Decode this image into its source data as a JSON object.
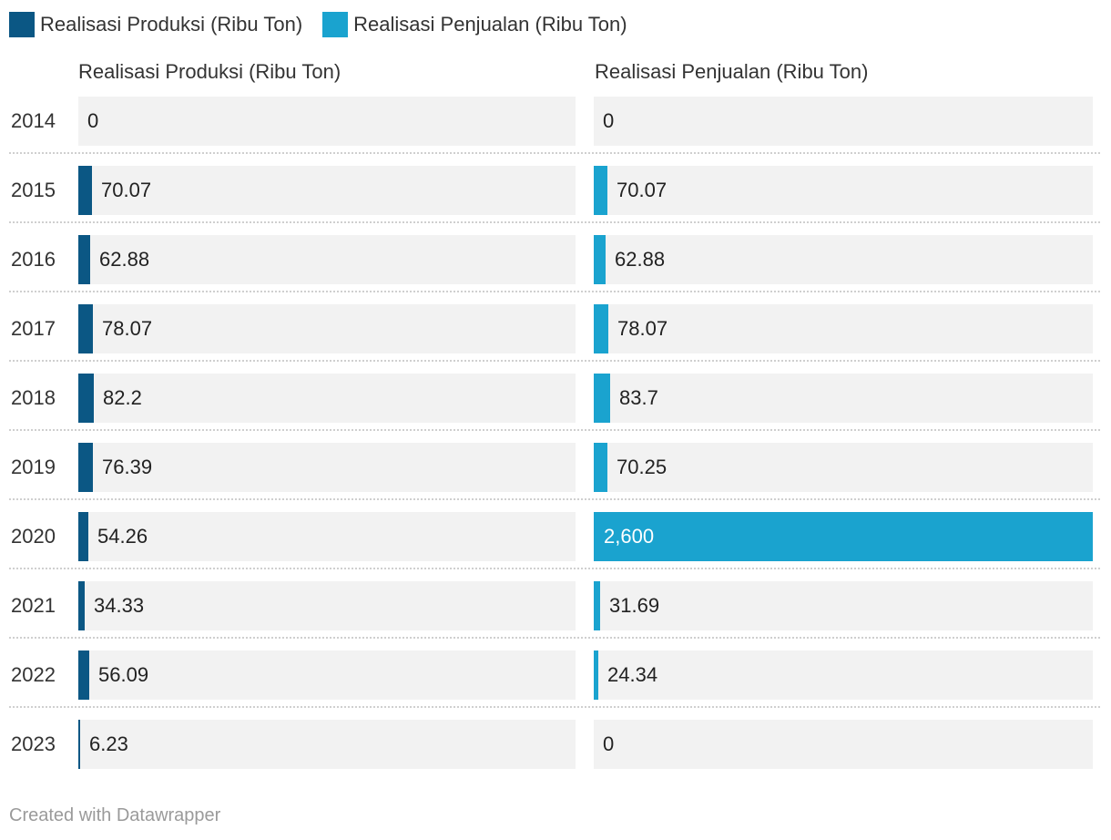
{
  "chart_data": {
    "type": "bar",
    "categories": [
      "2014",
      "2015",
      "2016",
      "2017",
      "2018",
      "2019",
      "2020",
      "2021",
      "2022",
      "2023"
    ],
    "series": [
      {
        "name": "Realisasi Produksi (Ribu Ton)",
        "color": "#0b5784",
        "values": [
          0,
          70.07,
          62.88,
          78.07,
          82.2,
          76.39,
          54.26,
          34.33,
          56.09,
          6.23
        ],
        "labels": [
          "0",
          "70.07",
          "62.88",
          "78.07",
          "82.2",
          "76.39",
          "54.26",
          "34.33",
          "56.09",
          "6.23"
        ]
      },
      {
        "name": "Realisasi Penjualan (Ribu Ton)",
        "color": "#1aa3cf",
        "values": [
          0,
          70.07,
          62.88,
          78.07,
          83.7,
          70.25,
          2600,
          31.69,
          24.34,
          0
        ],
        "labels": [
          "0",
          "70.07",
          "62.88",
          "78.07",
          "83.7",
          "70.25",
          "2,600",
          "31.69",
          "24.34",
          "0"
        ]
      }
    ],
    "xmax": 2600,
    "track_color": "#f2f2f2",
    "legend_position": "top-left"
  },
  "legend": [
    {
      "label": "Realisasi Produksi (Ribu Ton)",
      "color": "#0b5784"
    },
    {
      "label": "Realisasi Penjualan (Ribu Ton)",
      "color": "#1aa3cf"
    }
  ],
  "columns": [
    "Realisasi Produksi (Ribu Ton)",
    "Realisasi Penjualan (Ribu Ton)"
  ],
  "footer": "Created with Datawrapper"
}
